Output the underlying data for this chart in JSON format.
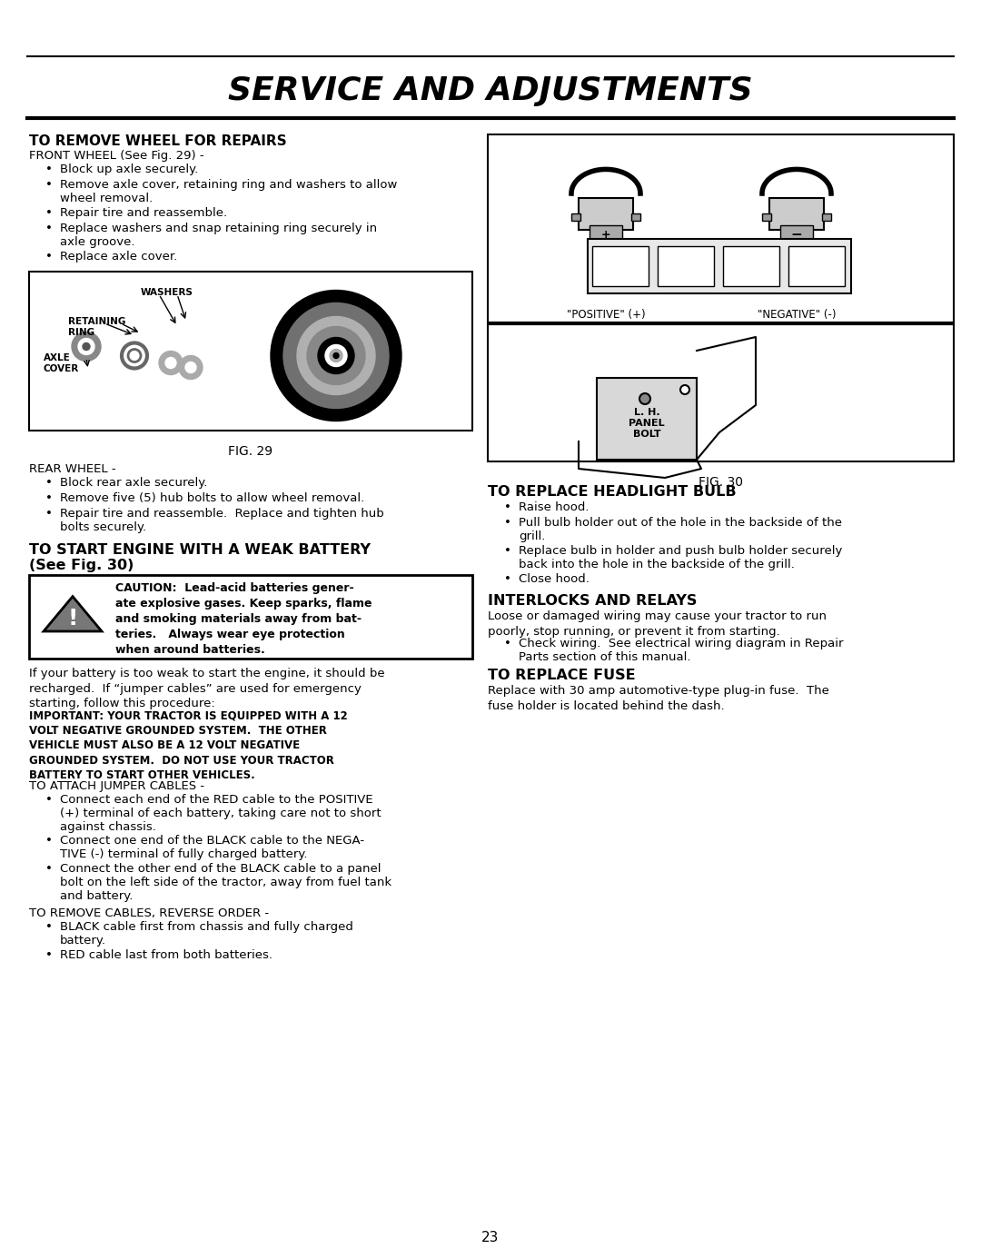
{
  "title": "SERVICE AND ADJUSTMENTS",
  "page_number": "23",
  "bg_color": "#ffffff",
  "section1_heading": "TO REMOVE WHEEL FOR REPAIRS",
  "section1_sub": "FRONT WHEEL (See Fig. 29) -",
  "section1_bullets": [
    "Block up axle securely.",
    "Remove axle cover, retaining ring and washers to allow\nwheel removal.",
    "Repair tire and reassemble.",
    "Replace washers and snap retaining ring securely in\naxle groove.",
    "Replace axle cover."
  ],
  "fig29_caption": "FIG. 29",
  "rear_wheel_heading": "REAR WHEEL -",
  "rear_wheel_bullets": [
    "Block rear axle securely.",
    "Remove five (5) hub bolts to allow wheel removal.",
    "Repair tire and reassemble.  Replace and tighten hub\nbolts securely."
  ],
  "section2_heading_1": "TO START ENGINE WITH A WEAK BATTERY",
  "section2_heading_2": "(See Fig. 30)",
  "caution_text": "CAUTION:  Lead-acid batteries gener-\nate explosive gases. Keep sparks, flame\nand smoking materials away from bat-\nteries.   Always wear eye protection\nwhen around batteries.",
  "battery_para1": "If your battery is too weak to start the engine, it should be\nrecharged.  If “jumper cables” are used for emergency\nstarting, follow this procedure:",
  "important_text": "IMPORTANT: YOUR TRACTOR IS EQUIPPED WITH A 12\nVOLT NEGATIVE GROUNDED SYSTEM.  THE OTHER\nVEHICLE MUST ALSO BE A 12 VOLT NEGATIVE\nGROUNDED SYSTEM.  DO NOT USE YOUR TRACTOR\nBATTERY TO START OTHER VEHICLES.",
  "attach_heading": "TO ATTACH JUMPER CABLES -",
  "attach_bullets": [
    "Connect each end of the RED cable to the POSITIVE\n(+) terminal of each battery, taking care not to short\nagainst chassis.",
    "Connect one end of the BLACK cable to the NEGA-\nTIVE (-) terminal of fully charged battery.",
    "Connect the other end of the BLACK cable to a panel\nbolt on the left side of the tractor, away from fuel tank\nand battery."
  ],
  "remove_heading": "TO REMOVE CABLES, REVERSE ORDER -",
  "remove_bullets": [
    "BLACK cable first from chassis and fully charged\nbattery.",
    "RED cable last from both batteries."
  ],
  "right_section_heading": "TO REPLACE HEADLIGHT BULB",
  "right_bullets": [
    "Raise hood.",
    "Pull bulb holder out of the hole in the backside of the\ngrill.",
    "Replace bulb in holder and push bulb holder securely\nback into the hole in the backside of the grill.",
    "Close hood."
  ],
  "interlocks_heading": "INTERLOCKS AND RELAYS",
  "interlocks_para": "Loose or damaged wiring may cause your tractor to run\npoorly, stop running, or prevent it from starting.",
  "interlocks_bullet": "Check wiring.  See electrical wiring diagram in Repair\nParts section of this manual.",
  "fuse_heading": "TO REPLACE FUSE",
  "fuse_para": "Replace with 30 amp automotive-type plug-in fuse.  The\nfuse holder is located behind the dash.",
  "fig30_caption": "FIG. 30",
  "positive_label": "\"POSITIVE\" (+)",
  "negative_label": "\"NEGATIVE\" (-)",
  "lh_panel_bolt": "L. H.\nPANEL\nBOLT"
}
